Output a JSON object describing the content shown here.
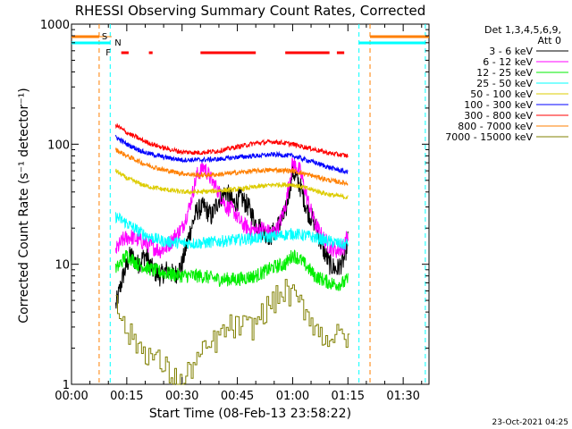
{
  "chart_data": {
    "type": "line",
    "title": "RHESSI Observing Summary Count Rates, Corrected",
    "xlabel": "Start Time (08-Feb-13 23:58:22)",
    "ylabel": "Corrected Count Rate (s⁻¹ detector⁻¹)",
    "yscale": "log",
    "ylim": [
      1,
      1000
    ],
    "xlim_min": [
      0,
      97
    ],
    "x_ticks": [
      {
        "t": 0,
        "label": "00:00"
      },
      {
        "t": 15,
        "label": "00:15"
      },
      {
        "t": 30,
        "label": "00:30"
      },
      {
        "t": 45,
        "label": "00:45"
      },
      {
        "t": 60,
        "label": "01:00"
      },
      {
        "t": 75,
        "label": "01:15"
      },
      {
        "t": 90,
        "label": "01:30"
      }
    ],
    "y_ticks": [
      {
        "v": 1,
        "label": "1"
      },
      {
        "v": 10,
        "label": "10"
      },
      {
        "v": 100,
        "label": "100"
      },
      {
        "v": 1000,
        "label": "1000"
      }
    ],
    "legend": {
      "header": [
        "Det 1,3,4,5,6,9,",
        "Att 0"
      ],
      "position": "right"
    },
    "series": [
      {
        "name": "3 - 6 keV",
        "color": "#000000",
        "noise": 0.09,
        "points": [
          [
            12,
            4.5
          ],
          [
            14,
            8
          ],
          [
            16,
            12
          ],
          [
            18,
            10
          ],
          [
            20,
            12
          ],
          [
            22,
            9
          ],
          [
            24,
            8
          ],
          [
            26,
            9
          ],
          [
            28,
            8
          ],
          [
            30,
            10
          ],
          [
            32,
            18
          ],
          [
            34,
            28
          ],
          [
            36,
            30
          ],
          [
            38,
            25
          ],
          [
            40,
            35
          ],
          [
            42,
            40
          ],
          [
            44,
            32
          ],
          [
            46,
            36
          ],
          [
            48,
            30
          ],
          [
            50,
            22
          ],
          [
            52,
            19
          ],
          [
            54,
            17
          ],
          [
            56,
            21
          ],
          [
            58,
            26
          ],
          [
            60,
            60
          ],
          [
            62,
            45
          ],
          [
            64,
            28
          ],
          [
            66,
            22
          ],
          [
            68,
            14
          ],
          [
            70,
            10
          ],
          [
            72,
            9
          ],
          [
            74,
            11
          ],
          [
            75,
            16
          ]
        ]
      },
      {
        "name": "6 - 12 keV",
        "color": "#ff00ff",
        "noise": 0.07,
        "points": [
          [
            12,
            13
          ],
          [
            14,
            16
          ],
          [
            16,
            17
          ],
          [
            18,
            16
          ],
          [
            20,
            15
          ],
          [
            22,
            14
          ],
          [
            24,
            13
          ],
          [
            26,
            14
          ],
          [
            28,
            17
          ],
          [
            30,
            20
          ],
          [
            32,
            30
          ],
          [
            34,
            55
          ],
          [
            36,
            65
          ],
          [
            38,
            50
          ],
          [
            40,
            40
          ],
          [
            42,
            30
          ],
          [
            44,
            28
          ],
          [
            46,
            22
          ],
          [
            48,
            20
          ],
          [
            50,
            19
          ],
          [
            52,
            20
          ],
          [
            54,
            18
          ],
          [
            56,
            20
          ],
          [
            58,
            30
          ],
          [
            60,
            70
          ],
          [
            62,
            60
          ],
          [
            64,
            35
          ],
          [
            66,
            22
          ],
          [
            68,
            17
          ],
          [
            70,
            14
          ],
          [
            72,
            13
          ],
          [
            74,
            14
          ],
          [
            75,
            18
          ]
        ]
      },
      {
        "name": "12 - 25 keV",
        "color": "#00ee00",
        "noise": 0.06,
        "points": [
          [
            12,
            9
          ],
          [
            15,
            12
          ],
          [
            18,
            10
          ],
          [
            22,
            9
          ],
          [
            25,
            8.5
          ],
          [
            30,
            8
          ],
          [
            35,
            8
          ],
          [
            40,
            7.5
          ],
          [
            45,
            7.5
          ],
          [
            50,
            8
          ],
          [
            55,
            9.5
          ],
          [
            58,
            10
          ],
          [
            60,
            12
          ],
          [
            62,
            11
          ],
          [
            64,
            9.5
          ],
          [
            66,
            8
          ],
          [
            68,
            7.5
          ],
          [
            70,
            7
          ],
          [
            72,
            6.8
          ],
          [
            74,
            7
          ],
          [
            75,
            7.5
          ]
        ]
      },
      {
        "name": "25 - 50 keV",
        "color": "#00ffff",
        "noise": 0.05,
        "points": [
          [
            12,
            25
          ],
          [
            15,
            22
          ],
          [
            18,
            19
          ],
          [
            21,
            17
          ],
          [
            25,
            15.5
          ],
          [
            30,
            15
          ],
          [
            35,
            15
          ],
          [
            40,
            15.5
          ],
          [
            45,
            16
          ],
          [
            50,
            16.5
          ],
          [
            55,
            17
          ],
          [
            60,
            18
          ],
          [
            65,
            17
          ],
          [
            70,
            15.5
          ],
          [
            74,
            14.5
          ],
          [
            75,
            15
          ]
        ]
      },
      {
        "name": "50 - 100 keV",
        "color": "#ddcc00",
        "noise": 0.02,
        "points": [
          [
            12,
            60
          ],
          [
            15,
            52
          ],
          [
            20,
            45
          ],
          [
            25,
            42
          ],
          [
            30,
            40
          ],
          [
            35,
            40
          ],
          [
            40,
            41
          ],
          [
            45,
            42
          ],
          [
            50,
            44
          ],
          [
            55,
            46
          ],
          [
            60,
            46
          ],
          [
            65,
            42
          ],
          [
            70,
            38
          ],
          [
            75,
            36
          ]
        ]
      },
      {
        "name": "100 - 300 keV",
        "color": "#0000ff",
        "noise": 0.02,
        "points": [
          [
            12,
            115
          ],
          [
            15,
            100
          ],
          [
            20,
            85
          ],
          [
            25,
            78
          ],
          [
            30,
            74
          ],
          [
            35,
            74
          ],
          [
            40,
            75
          ],
          [
            45,
            78
          ],
          [
            50,
            80
          ],
          [
            55,
            82
          ],
          [
            60,
            80
          ],
          [
            65,
            72
          ],
          [
            70,
            64
          ],
          [
            75,
            58
          ]
        ]
      },
      {
        "name": "300 - 800 keV",
        "color": "#ff0000",
        "noise": 0.02,
        "points": [
          [
            12,
            145
          ],
          [
            15,
            125
          ],
          [
            20,
            105
          ],
          [
            25,
            93
          ],
          [
            30,
            86
          ],
          [
            35,
            85
          ],
          [
            40,
            88
          ],
          [
            45,
            95
          ],
          [
            50,
            102
          ],
          [
            55,
            105
          ],
          [
            60,
            100
          ],
          [
            65,
            92
          ],
          [
            70,
            84
          ],
          [
            75,
            80
          ]
        ]
      },
      {
        "name": "800 - 7000 keV",
        "color": "#ff7f00",
        "noise": 0.02,
        "points": [
          [
            12,
            90
          ],
          [
            15,
            80
          ],
          [
            20,
            68
          ],
          [
            25,
            61
          ],
          [
            30,
            57
          ],
          [
            35,
            55
          ],
          [
            40,
            56
          ],
          [
            45,
            58
          ],
          [
            50,
            60
          ],
          [
            55,
            61
          ],
          [
            60,
            60
          ],
          [
            65,
            55
          ],
          [
            70,
            50
          ],
          [
            75,
            47
          ]
        ]
      },
      {
        "name": "7000 - 15000 keV",
        "color": "#808000",
        "step": true,
        "points": [
          [
            12,
            6
          ],
          [
            13,
            4
          ],
          [
            14,
            3
          ],
          [
            16,
            2.5
          ],
          [
            19,
            2
          ],
          [
            24,
            1.5
          ],
          [
            27,
            1.2
          ],
          [
            30,
            1
          ],
          [
            33,
            1.5
          ],
          [
            37,
            2
          ],
          [
            40,
            2.5
          ],
          [
            43,
            3
          ],
          [
            46,
            3
          ],
          [
            49,
            3
          ],
          [
            52,
            4
          ],
          [
            55,
            5
          ],
          [
            58,
            6
          ],
          [
            61,
            5
          ],
          [
            64,
            4
          ],
          [
            66,
            3
          ],
          [
            68,
            2.5
          ],
          [
            70,
            2.5
          ],
          [
            72,
            2.5
          ],
          [
            74,
            2.5
          ],
          [
            75,
            2.5
          ]
        ]
      }
    ],
    "markers": {
      "saa_flag": "S",
      "night_flag": "N",
      "flare_flag": "F",
      "night_lines_t": [
        10.5,
        78,
        96
      ],
      "saa_lines_t": [
        7.5,
        81
      ],
      "flare_segments": [
        [
          13.5,
          15.5
        ],
        [
          21,
          22
        ],
        [
          35,
          50
        ],
        [
          58,
          70
        ],
        [
          72,
          74
        ]
      ]
    },
    "footer_date": "23-Oct-2021 04:25"
  }
}
